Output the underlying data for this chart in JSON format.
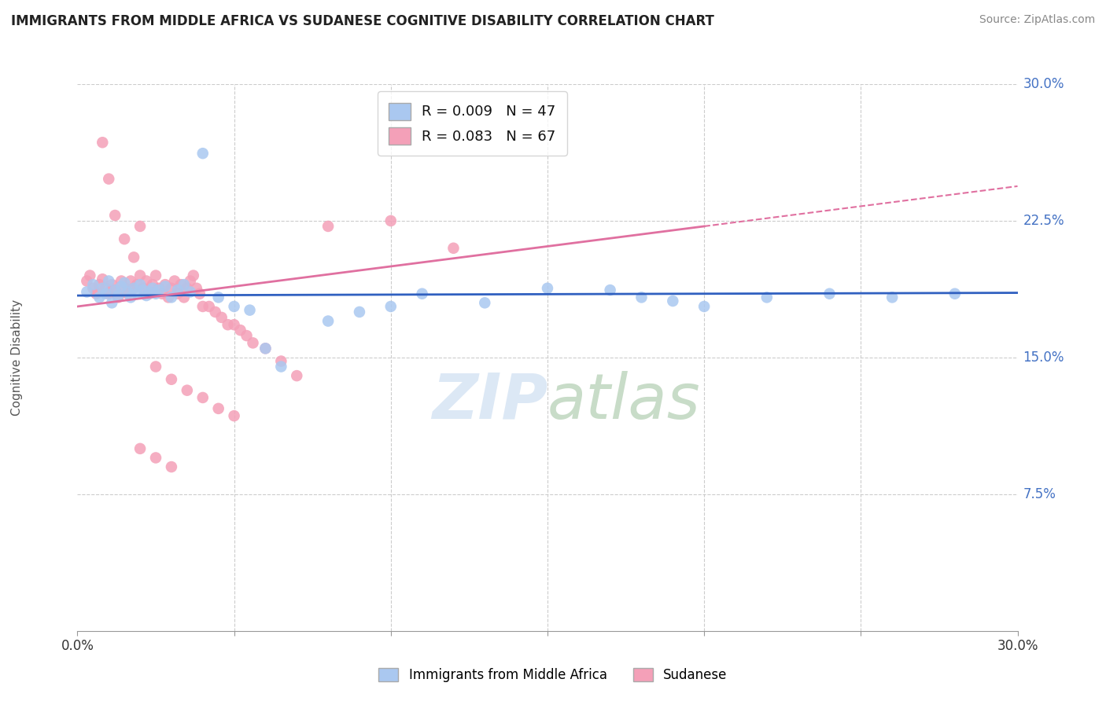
{
  "title": "IMMIGRANTS FROM MIDDLE AFRICA VS SUDANESE COGNITIVE DISABILITY CORRELATION CHART",
  "source": "Source: ZipAtlas.com",
  "ylabel": "Cognitive Disability",
  "xlim": [
    0.0,
    0.3
  ],
  "ylim": [
    0.0,
    0.3
  ],
  "xtick_positions": [
    0.0,
    0.05,
    0.1,
    0.15,
    0.2,
    0.25,
    0.3
  ],
  "xticklabels": [
    "0.0%",
    "",
    "",
    "",
    "",
    "",
    "30.0%"
  ],
  "ytick_positions": [
    0.075,
    0.15,
    0.225,
    0.3
  ],
  "ytick_labels": [
    "7.5%",
    "15.0%",
    "22.5%",
    "30.0%"
  ],
  "blue_color": "#aac8f0",
  "pink_color": "#f4a0b8",
  "blue_line_color": "#3060c0",
  "pink_line_color": "#e070a0",
  "legend_blue_label": "R = 0.009   N = 47",
  "legend_pink_label": "R = 0.083   N = 67",
  "background_color": "#ffffff",
  "blue_scatter_x": [
    0.003,
    0.005,
    0.007,
    0.008,
    0.009,
    0.01,
    0.011,
    0.012,
    0.013,
    0.014,
    0.015,
    0.016,
    0.017,
    0.018,
    0.019,
    0.02,
    0.021,
    0.022,
    0.023,
    0.024,
    0.025,
    0.026,
    0.028,
    0.03,
    0.032,
    0.034,
    0.036,
    0.04,
    0.045,
    0.05,
    0.055,
    0.06,
    0.065,
    0.08,
    0.09,
    0.1,
    0.11,
    0.13,
    0.15,
    0.18,
    0.2,
    0.22,
    0.24,
    0.26,
    0.17,
    0.19,
    0.28
  ],
  "blue_scatter_y": [
    0.186,
    0.19,
    0.183,
    0.188,
    0.185,
    0.192,
    0.18,
    0.187,
    0.184,
    0.189,
    0.191,
    0.186,
    0.183,
    0.188,
    0.185,
    0.19,
    0.187,
    0.184,
    0.186,
    0.188,
    0.185,
    0.187,
    0.189,
    0.183,
    0.187,
    0.19,
    0.186,
    0.262,
    0.183,
    0.178,
    0.176,
    0.155,
    0.145,
    0.17,
    0.175,
    0.178,
    0.185,
    0.18,
    0.188,
    0.183,
    0.178,
    0.183,
    0.185,
    0.183,
    0.187,
    0.181,
    0.185
  ],
  "pink_scatter_x": [
    0.003,
    0.004,
    0.005,
    0.006,
    0.007,
    0.008,
    0.009,
    0.01,
    0.011,
    0.012,
    0.013,
    0.014,
    0.015,
    0.016,
    0.017,
    0.018,
    0.019,
    0.02,
    0.021,
    0.022,
    0.023,
    0.024,
    0.025,
    0.026,
    0.027,
    0.028,
    0.029,
    0.03,
    0.031,
    0.032,
    0.033,
    0.034,
    0.035,
    0.036,
    0.037,
    0.038,
    0.039,
    0.04,
    0.042,
    0.044,
    0.046,
    0.048,
    0.05,
    0.052,
    0.054,
    0.056,
    0.06,
    0.065,
    0.07,
    0.008,
    0.01,
    0.012,
    0.015,
    0.018,
    0.02,
    0.025,
    0.03,
    0.035,
    0.04,
    0.045,
    0.05,
    0.02,
    0.025,
    0.03,
    0.08,
    0.1,
    0.12
  ],
  "pink_scatter_y": [
    0.192,
    0.195,
    0.188,
    0.185,
    0.19,
    0.193,
    0.188,
    0.185,
    0.19,
    0.187,
    0.183,
    0.192,
    0.188,
    0.185,
    0.192,
    0.188,
    0.19,
    0.195,
    0.188,
    0.192,
    0.185,
    0.19,
    0.195,
    0.188,
    0.185,
    0.19,
    0.183,
    0.188,
    0.192,
    0.185,
    0.19,
    0.183,
    0.188,
    0.192,
    0.195,
    0.188,
    0.185,
    0.178,
    0.178,
    0.175,
    0.172,
    0.168,
    0.168,
    0.165,
    0.162,
    0.158,
    0.155,
    0.148,
    0.14,
    0.268,
    0.248,
    0.228,
    0.215,
    0.205,
    0.222,
    0.145,
    0.138,
    0.132,
    0.128,
    0.122,
    0.118,
    0.1,
    0.095,
    0.09,
    0.222,
    0.225,
    0.21
  ]
}
